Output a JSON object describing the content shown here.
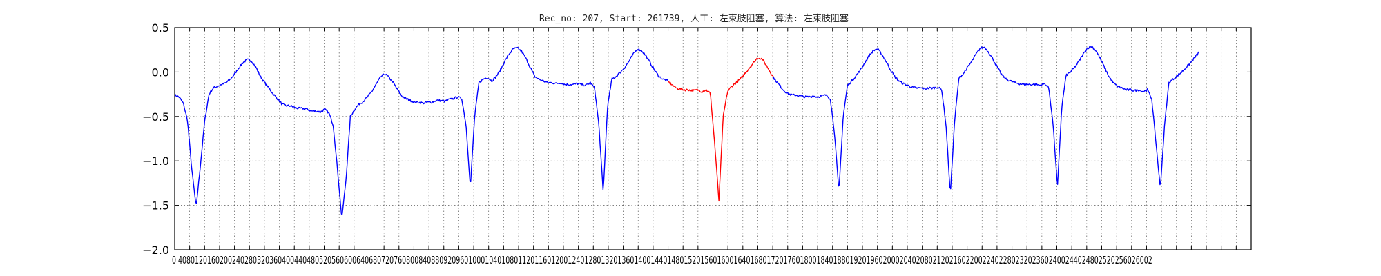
{
  "chart_data": {
    "type": "line",
    "title": "Rec_no: 207, Start: 261739, 人工: 左束肢阻塞, 算法: 左束肢阻塞",
    "xlabel": "",
    "ylabel": "",
    "xlim": [
      0,
      2880
    ],
    "ylim": [
      -2.0,
      0.5
    ],
    "grid": true,
    "grid_style": "dotted",
    "x_tick_step": 40,
    "x_tick_last": 2880,
    "x_tick_labels_shown_to": 2560,
    "x_tick_label_text": "0 4080120160200240280320360400440480520560600640680720760800840880920960100010401080112011601200124012801320136014001440148015201560160016401680172017601800184018801920196020002040208021202160220022402280232023602400244024802520256026002",
    "y_ticks": [
      0.5,
      0.0,
      -0.5,
      -1.0,
      -1.5,
      -2.0
    ],
    "y_tick_labels": [
      "0.5",
      "0.0",
      "−0.5",
      "−1.0",
      "−1.5",
      "−2.0"
    ],
    "colors": {
      "normal": "#0000ff",
      "highlight": "#ff0000",
      "grid": "#555555"
    },
    "highlight_range": [
      1320,
      1600
    ],
    "beats_at": [
      36,
      355,
      703,
      1058,
      1405,
      1752,
      2103,
      2448,
      2782
    ],
    "beat_depths": [
      -1.52,
      -1.65,
      -1.33,
      -1.36,
      -1.45,
      -1.35,
      -1.38,
      -1.32,
      -1.31
    ],
    "series": [
      {
        "values": [
          -0.26,
          -0.28,
          -0.35,
          -0.55,
          -1.1,
          -1.52,
          -1.05,
          -0.55,
          -0.25,
          -0.18,
          -0.16,
          -0.14,
          -0.12,
          -0.08,
          -0.02,
          0.05,
          0.11,
          0.14,
          0.12,
          0.05,
          -0.05,
          -0.12,
          -0.18,
          -0.25,
          -0.3,
          -0.36,
          -0.38,
          -0.38,
          -0.4,
          -0.41,
          -0.41,
          -0.42,
          -0.44,
          -0.44,
          -0.45,
          -0.42,
          -0.46,
          -0.6,
          -1.1,
          -1.65,
          -1.2,
          -0.5,
          -0.42,
          -0.36,
          -0.33,
          -0.28,
          -0.22,
          -0.14,
          -0.06,
          -0.02,
          -0.06,
          -0.12,
          -0.2,
          -0.27,
          -0.3,
          -0.32,
          -0.34,
          -0.34,
          -0.35,
          -0.34,
          -0.34,
          -0.32,
          -0.32,
          -0.33,
          -0.31,
          -0.3,
          -0.28,
          -0.3,
          -0.6,
          -1.3,
          -0.5,
          -0.12,
          -0.08,
          -0.06,
          -0.1,
          -0.05,
          0.02,
          0.12,
          0.2,
          0.26,
          0.27,
          0.23,
          0.15,
          0.05,
          -0.05,
          -0.08,
          -0.1,
          -0.12,
          -0.12,
          -0.13,
          -0.12,
          -0.14,
          -0.14,
          -0.14,
          -0.13,
          -0.14,
          -0.15,
          -0.12,
          -0.18,
          -0.6,
          -1.36,
          -0.4,
          -0.08,
          -0.05,
          0.0,
          0.05,
          0.12,
          0.2,
          0.26,
          0.24,
          0.18,
          0.1,
          0.02,
          -0.05,
          -0.08,
          -0.1,
          -0.14,
          -0.18,
          -0.19,
          -0.2,
          -0.2,
          -0.21,
          -0.2,
          -0.22,
          -0.2,
          -0.24,
          -0.8,
          -1.45,
          -0.5,
          -0.22,
          -0.16,
          -0.12,
          -0.08,
          -0.02,
          0.04,
          0.1,
          0.16,
          0.15,
          0.08,
          0.0,
          -0.08,
          -0.14,
          -0.2,
          -0.24,
          -0.26,
          -0.26,
          -0.27,
          -0.28,
          -0.28,
          -0.27,
          -0.28,
          -0.27,
          -0.26,
          -0.3,
          -0.7,
          -1.35,
          -0.5,
          -0.15,
          -0.1,
          -0.04,
          0.02,
          0.1,
          0.18,
          0.24,
          0.26,
          0.2,
          0.12,
          0.03,
          -0.05,
          -0.1,
          -0.13,
          -0.15,
          -0.17,
          -0.18,
          -0.18,
          -0.19,
          -0.18,
          -0.18,
          -0.17,
          -0.2,
          -0.6,
          -1.38,
          -0.55,
          -0.07,
          -0.02,
          0.05,
          0.12,
          0.2,
          0.27,
          0.28,
          0.22,
          0.14,
          0.05,
          -0.03,
          -0.08,
          -0.1,
          -0.12,
          -0.13,
          -0.14,
          -0.14,
          -0.14,
          -0.14,
          -0.15,
          -0.13,
          -0.18,
          -0.6,
          -1.3,
          -0.4,
          -0.04,
          0.0,
          0.05,
          0.12,
          0.2,
          0.27,
          0.29,
          0.24,
          0.15,
          0.05,
          -0.05,
          -0.12,
          -0.16,
          -0.18,
          -0.2,
          -0.2,
          -0.21,
          -0.2,
          -0.22,
          -0.2,
          -0.3,
          -0.8,
          -1.31,
          -0.6,
          -0.12,
          -0.08,
          -0.04,
          0.0,
          0.05,
          0.1,
          0.16,
          0.22
        ]
      }
    ]
  }
}
